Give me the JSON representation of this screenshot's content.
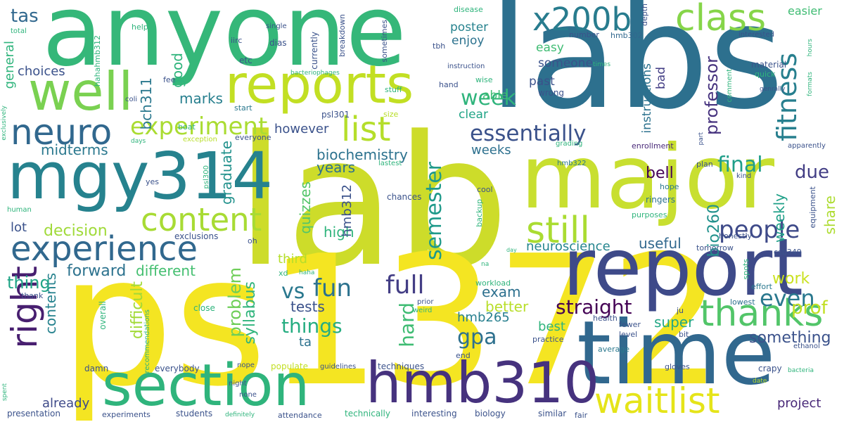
{
  "words": [
    {
      "text": "lab",
      "color": "#cddc2a"
    },
    {
      "text": "ps1372",
      "color": "#f4e522"
    },
    {
      "text": "labs",
      "color": "#2d708e"
    },
    {
      "text": "anyone",
      "color": "#35b779"
    },
    {
      "text": "major",
      "color": "#c8df30"
    },
    {
      "text": "time",
      "color": "#31688e"
    },
    {
      "text": "report",
      "color": "#3e4a89"
    },
    {
      "text": "section",
      "color": "#2fb47c"
    },
    {
      "text": "mgy314",
      "color": "#26828e"
    },
    {
      "text": "hmb310",
      "color": "#46327e"
    },
    {
      "text": "reports",
      "color": "#c2df23"
    },
    {
      "text": "well",
      "color": "#7ad151"
    },
    {
      "text": "experience",
      "color": "#31688e"
    },
    {
      "text": "x200b",
      "color": "#287c8e"
    },
    {
      "text": "class",
      "color": "#86d549"
    },
    {
      "text": "thanks",
      "color": "#52c569"
    },
    {
      "text": "waitlist",
      "color": "#e5e419"
    },
    {
      "text": "still",
      "color": "#aadc32"
    },
    {
      "text": "content",
      "color": "#a8db34"
    },
    {
      "text": "neuro",
      "color": "#31688e"
    },
    {
      "text": "right",
      "color": "#481f70"
    },
    {
      "text": "list",
      "color": "#b5de2b"
    },
    {
      "text": "experiment",
      "color": "#aadc32"
    },
    {
      "text": "essentially",
      "color": "#3b528b"
    },
    {
      "text": "fitness",
      "color": "#277f8e"
    },
    {
      "text": "people",
      "color": "#3e4a89"
    },
    {
      "text": "even",
      "color": "#2a788e"
    },
    {
      "text": "full",
      "color": "#433e85"
    },
    {
      "text": "final",
      "color": "#1f9e89"
    },
    {
      "text": "semester",
      "color": "#1f9a8a"
    },
    {
      "text": "straight",
      "color": "#440154"
    },
    {
      "text": "things",
      "color": "#26ad81"
    },
    {
      "text": "fun",
      "color": "#2c728e"
    },
    {
      "text": "hard",
      "color": "#3fbc73"
    },
    {
      "text": "vs",
      "color": "#2a788e"
    },
    {
      "text": "gpa",
      "color": "#2d708e"
    },
    {
      "text": "week",
      "color": "#2fb47c"
    },
    {
      "text": "prof",
      "color": "#c2df23"
    },
    {
      "text": "due",
      "color": "#433e85"
    },
    {
      "text": "tas",
      "color": "#31688e"
    },
    {
      "text": "professor",
      "color": "#46327e"
    },
    {
      "text": "bio260",
      "color": "#21918c"
    },
    {
      "text": "problem",
      "color": "#6ece58"
    },
    {
      "text": "biochemistry",
      "color": "#2c728e"
    },
    {
      "text": "graduate",
      "color": "#21918c"
    },
    {
      "text": "contents",
      "color": "#26828e"
    },
    {
      "text": "difficult",
      "color": "#a2da37"
    },
    {
      "text": "syllabus",
      "color": "#2fb47c"
    },
    {
      "text": "neuroscience",
      "color": "#25858e"
    },
    {
      "text": "something",
      "color": "#3b528b"
    },
    {
      "text": "project",
      "color": "#482878"
    },
    {
      "text": "decision",
      "color": "#a0da39"
    },
    {
      "text": "forward",
      "color": "#2c728e"
    },
    {
      "text": "different",
      "color": "#44bf70"
    },
    {
      "text": "thing",
      "color": "#20a486"
    },
    {
      "text": "tests",
      "color": "#3b528b"
    },
    {
      "text": "better",
      "color": "#b8de29"
    },
    {
      "text": "bell",
      "color": "#440154"
    },
    {
      "text": "useful",
      "color": "#31688e"
    },
    {
      "text": "weekly",
      "color": "#1fa088"
    },
    {
      "text": "share",
      "color": "#addc30"
    },
    {
      "text": "super",
      "color": "#22a785"
    },
    {
      "text": "work",
      "color": "#cae11f"
    },
    {
      "text": "exam",
      "color": "#2d708e"
    },
    {
      "text": "midterms",
      "color": "#2a788e"
    },
    {
      "text": "general",
      "color": "#2fb47c"
    },
    {
      "text": "choices",
      "color": "#3b528b"
    },
    {
      "text": "marks",
      "color": "#277f8e"
    },
    {
      "text": "bch311",
      "color": "#2a788e"
    },
    {
      "text": "good",
      "color": "#2fb47c"
    },
    {
      "text": "however",
      "color": "#3b528b"
    },
    {
      "text": "weeks",
      "color": "#2d708e"
    },
    {
      "text": "years",
      "color": "#2d708e"
    },
    {
      "text": "high",
      "color": "#2fb47c"
    },
    {
      "text": "quizzes",
      "color": "#52c569"
    },
    {
      "text": "hmb312",
      "color": "#3b528b"
    },
    {
      "text": "third",
      "color": "#b5de2b"
    },
    {
      "text": "hmb265",
      "color": "#277f8e"
    },
    {
      "text": "ta",
      "color": "#2c728e"
    },
    {
      "text": "best",
      "color": "#2fb47c"
    },
    {
      "text": "already",
      "color": "#3e4a89"
    },
    {
      "text": "lot",
      "color": "#3b528b"
    },
    {
      "text": "someone",
      "color": "#3b528b"
    },
    {
      "text": "past",
      "color": "#3b528b"
    },
    {
      "text": "easy",
      "color": "#3fbc73"
    },
    {
      "text": "poster",
      "color": "#26828e"
    },
    {
      "text": "enjoy",
      "color": "#2c728e"
    },
    {
      "text": "able",
      "color": "#3fbc73"
    },
    {
      "text": "clear",
      "color": "#20a486"
    },
    {
      "text": "instructions",
      "color": "#2c728e"
    },
    {
      "text": "bad",
      "color": "#433e85"
    },
    {
      "text": "easier",
      "color": "#3fbc73"
    },
    {
      "text": "hmb302",
      "color": "#31688e"
    },
    {
      "text": "enrollment",
      "color": "#482878"
    },
    {
      "text": "hmb322",
      "color": "#2a788e"
    },
    {
      "text": "plan",
      "color": "#3b528b"
    },
    {
      "text": "hope",
      "color": "#2a788e"
    },
    {
      "text": "ringers",
      "color": "#2c728e"
    },
    {
      "text": "purposes",
      "color": "#2fb47c"
    },
    {
      "text": "honestly",
      "color": "#3b528b"
    },
    {
      "text": "equipment",
      "color": "#3b528b"
    },
    {
      "text": "tomorrow",
      "color": "#3b528b"
    },
    {
      "text": "csb349",
      "color": "#3b528b"
    },
    {
      "text": "lowest",
      "color": "#2d708e"
    },
    {
      "text": "effort",
      "color": "#2a788e"
    },
    {
      "text": "spots",
      "color": "#2fb47c"
    },
    {
      "text": "ju",
      "color": "#3b528b"
    },
    {
      "text": "health",
      "color": "#3b528b"
    },
    {
      "text": "fewer",
      "color": "#3b528b"
    },
    {
      "text": "level",
      "color": "#3b528b"
    },
    {
      "text": "bit",
      "color": "#3b528b"
    },
    {
      "text": "average",
      "color": "#2a788e"
    },
    {
      "text": "practice",
      "color": "#3b528b"
    },
    {
      "text": "ethanol",
      "color": "#3b528b"
    },
    {
      "text": "crapy",
      "color": "#3b528b"
    },
    {
      "text": "bacteria",
      "color": "#2fb47c"
    },
    {
      "text": "gloves",
      "color": "#3b528b"
    },
    {
      "text": "date",
      "color": "#b8de29"
    },
    {
      "text": "fair",
      "color": "#3b528b"
    },
    {
      "text": "similar",
      "color": "#3b528b"
    },
    {
      "text": "biology",
      "color": "#3b528b"
    },
    {
      "text": "interesting",
      "color": "#3b528b"
    },
    {
      "text": "technically",
      "color": "#2fb47c"
    },
    {
      "text": "attendance",
      "color": "#3b528b"
    },
    {
      "text": "definitely",
      "color": "#2fb47c"
    },
    {
      "text": "students",
      "color": "#3b528b"
    },
    {
      "text": "experiments",
      "color": "#3b528b"
    },
    {
      "text": "presentation",
      "color": "#3b528b"
    },
    {
      "text": "spent",
      "color": "#2fb47c"
    },
    {
      "text": "damn",
      "color": "#3b528b"
    },
    {
      "text": "everybody",
      "color": "#3b528b"
    },
    {
      "text": "populate",
      "color": "#c2df23"
    },
    {
      "text": "guidelines",
      "color": "#3b528b"
    },
    {
      "text": "techniques",
      "color": "#3b528b"
    },
    {
      "text": "end",
      "color": "#3b528b"
    },
    {
      "text": "night",
      "color": "#3b528b"
    },
    {
      "text": "none",
      "color": "#3b528b"
    },
    {
      "text": "nope",
      "color": "#3b528b"
    },
    {
      "text": "recommendations",
      "color": "#2fb47c"
    },
    {
      "text": "close",
      "color": "#2fb47c"
    },
    {
      "text": "overall",
      "color": "#2fb47c"
    },
    {
      "text": "thank",
      "color": "#3b528b"
    },
    {
      "text": "xd",
      "color": "#2fb47c"
    },
    {
      "text": "haha",
      "color": "#2fb47c"
    },
    {
      "text": "oh",
      "color": "#3b528b"
    },
    {
      "text": "exclusions",
      "color": "#3b528b"
    },
    {
      "text": "human",
      "color": "#2fb47c"
    },
    {
      "text": "yes",
      "color": "#3b528b"
    },
    {
      "text": "psl300",
      "color": "#2fb47c"
    },
    {
      "text": "exclusively",
      "color": "#2fb47c"
    },
    {
      "text": "days",
      "color": "#2fb47c"
    },
    {
      "text": "exception",
      "color": "#b8de29"
    },
    {
      "text": "everyone",
      "color": "#3b528b"
    },
    {
      "text": "lastest",
      "color": "#2fb47c"
    },
    {
      "text": "chances",
      "color": "#3b528b"
    },
    {
      "text": "cool",
      "color": "#3b528b"
    },
    {
      "text": "backup",
      "color": "#2fb47c"
    },
    {
      "text": "day",
      "color": "#2fb47c"
    },
    {
      "text": "na",
      "color": "#2fb47c"
    },
    {
      "text": "workload",
      "color": "#2fb47c"
    },
    {
      "text": "prior",
      "color": "#3b528b"
    },
    {
      "text": "weird",
      "color": "#2fb47c"
    },
    {
      "text": "grading",
      "color": "#2fb47c"
    },
    {
      "text": "psl301",
      "color": "#3b528b"
    },
    {
      "text": "start",
      "color": "#2a788e"
    },
    {
      "text": "size",
      "color": "#b8de29"
    },
    {
      "text": "boat",
      "color": "#2fb47c"
    },
    {
      "text": "coli",
      "color": "#3b528b"
    },
    {
      "text": "fee",
      "color": "#3b528b"
    },
    {
      "text": "wrong",
      "color": "#3b528b"
    },
    {
      "text": "stuff",
      "color": "#2fb47c"
    },
    {
      "text": "hand",
      "color": "#3b528b"
    },
    {
      "text": "wise",
      "color": "#2fb47c"
    },
    {
      "text": "instruction",
      "color": "#3b528b"
    },
    {
      "text": "bacteriophages",
      "color": "#2fb47c"
    },
    {
      "text": "sometimes",
      "color": "#3b528b"
    },
    {
      "text": "breakdown",
      "color": "#3b528b"
    },
    {
      "text": "currently",
      "color": "#3b528b"
    },
    {
      "text": "dias",
      "color": "#3b528b"
    },
    {
      "text": "single",
      "color": "#3b528b"
    },
    {
      "text": "iirc",
      "color": "#3b528b"
    },
    {
      "text": "etc",
      "color": "#3b528b"
    },
    {
      "text": "help",
      "color": "#2fb47c"
    },
    {
      "text": "hahahmb312",
      "color": "#2fb47c"
    },
    {
      "text": "total",
      "color": "#2fb47c"
    },
    {
      "text": "disease",
      "color": "#2fb47c"
    },
    {
      "text": "tbh",
      "color": "#3b528b"
    },
    {
      "text": "number",
      "color": "#3b528b"
    },
    {
      "text": "depth",
      "color": "#3b528b"
    },
    {
      "text": "interested",
      "color": "#3b528b"
    },
    {
      "text": "hours",
      "color": "#2fb47c"
    },
    {
      "text": "formats",
      "color": "#2fb47c"
    },
    {
      "text": "times",
      "color": "#2fb47c"
    },
    {
      "text": "material",
      "color": "#3b528b"
    },
    {
      "text": "quick",
      "color": "#2fb47c"
    },
    {
      "text": "comment",
      "color": "#2fb47c"
    },
    {
      "text": "genrally",
      "color": "#3b528b"
    },
    {
      "text": "apparently",
      "color": "#3b528b"
    },
    {
      "text": "part",
      "color": "#3b528b"
    },
    {
      "text": "kind",
      "color": "#3b528b"
    }
  ]
}
